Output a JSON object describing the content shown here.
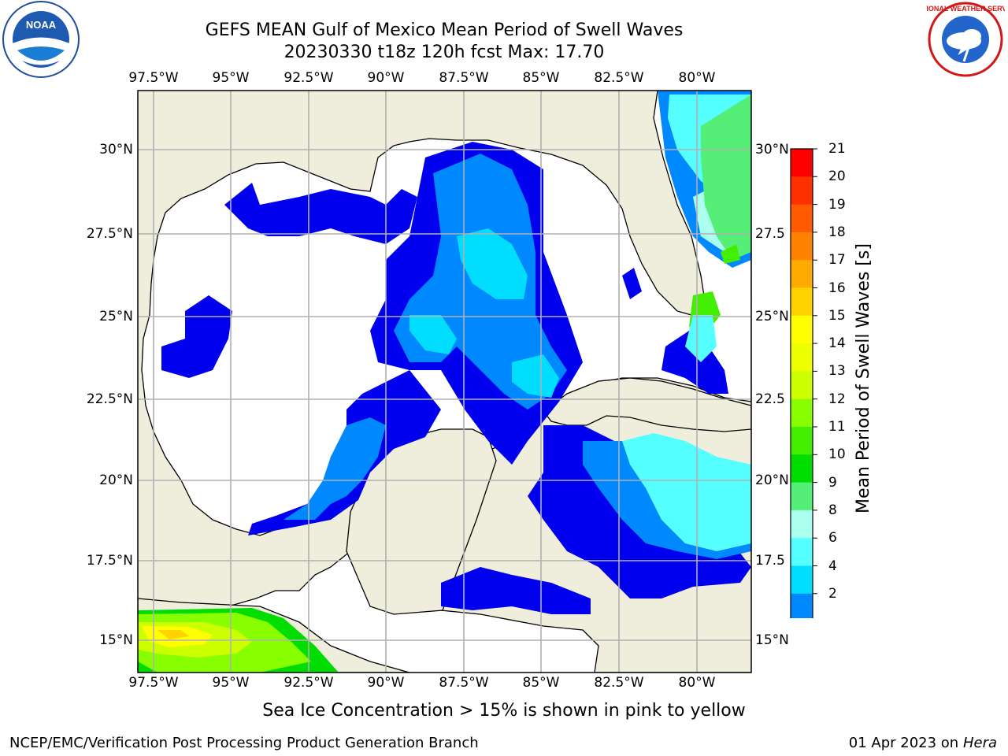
{
  "header": {
    "title": "GEFS MEAN Gulf of Mexico Mean Period of Swell Waves",
    "subtitle": "20230330 t18z 120h fcst   Max: 17.70"
  },
  "logos": {
    "left": {
      "icon": "noaa-logo-icon",
      "text": "NOAA"
    },
    "right": {
      "icon": "nws-logo-icon",
      "text": "NATIONAL WEATHER SERVICE"
    }
  },
  "map": {
    "lon_labels": [
      "97.5°W",
      "95°W",
      "92.5°W",
      "90°W",
      "87.5°W",
      "85°W",
      "82.5°W",
      "80°W"
    ],
    "lat_labels_left": [
      "30°N",
      "27.5°N",
      "25°N",
      "22.5°N",
      "20°N",
      "17.5°N",
      "15°N"
    ],
    "lat_labels_right": [
      "30°N",
      "27.5",
      "25°N",
      "22.5",
      "20°N",
      "17.5",
      "15°N"
    ],
    "colors": {
      "land": "#efeedd",
      "ocean": "#ffffff",
      "grid": "#b0b0b0"
    }
  },
  "colorbar": {
    "label": "Mean Period of Swell Waves [s]",
    "ticks": [
      "21",
      "20",
      "19",
      "18",
      "17",
      "16",
      "15",
      "14",
      "13",
      "12",
      "11",
      "10",
      "9",
      "8",
      "6",
      "4",
      "2"
    ],
    "colors": [
      "#ff0000",
      "#ff3000",
      "#ff5a00",
      "#ff8200",
      "#ffaa00",
      "#ffd200",
      "#ffff00",
      "#eeff00",
      "#ccff00",
      "#88ff00",
      "#44ee00",
      "#00dd00",
      "#55ee77",
      "#aaffee",
      "#55ffff",
      "#00ddff",
      "#0088ff",
      "#0000ee"
    ]
  },
  "footer": {
    "note": "Sea Ice Concentration > 15% is shown in pink to yellow",
    "left": "NCEP/EMC/Verification Post Processing Product Generation Branch",
    "right_date": "01 Apr 2023 on ",
    "right_host": "Hera"
  }
}
